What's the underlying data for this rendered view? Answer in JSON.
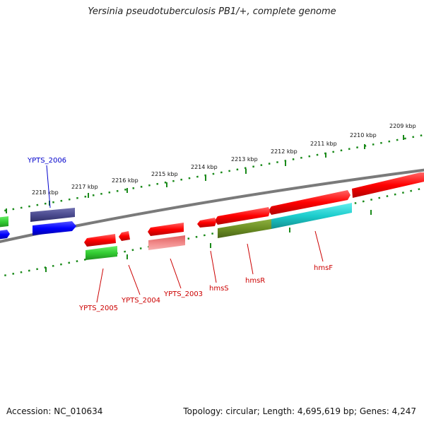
{
  "title": "Yersinia pseudotuberculosis PB1/+, complete genome",
  "footer": {
    "accession": "Accession: NC_010634",
    "summary": "Topology: circular; Length: 4,695,619 bp; Genes: 4,247"
  },
  "scale": {
    "ticks": [
      {
        "label": "2209 kbp"
      },
      {
        "label": "2210 kbp"
      },
      {
        "label": "2211 kbp"
      },
      {
        "label": "2212 kbp"
      },
      {
        "label": "2213 kbp"
      },
      {
        "label": "2214 kbp"
      },
      {
        "label": "2215 kbp"
      },
      {
        "label": "2216 kbp"
      },
      {
        "label": "2217 kbp"
      },
      {
        "label": "2218 kbp"
      }
    ]
  },
  "genes": [
    {
      "label": "YPTS_2006",
      "color": "#0000cc"
    },
    {
      "label": "YPTS_2005",
      "color": "#cc0000"
    },
    {
      "label": "YPTS_2004",
      "color": "#cc0000"
    },
    {
      "label": "YPTS_2003",
      "color": "#cc0000"
    },
    {
      "label": "hmsS",
      "color": "#cc0000"
    },
    {
      "label": "hmsR",
      "color": "#cc0000"
    },
    {
      "label": "hmsF",
      "color": "#cc0000"
    }
  ],
  "colors": {
    "cds": "#ff0000",
    "cds_light": "#f08080",
    "rna_blue": "#0000ff",
    "cog_navy": "#4b4b8f",
    "cog_green": "#33cc33",
    "cog_olive": "#6b8e23",
    "cog_cyan": "#1ccccc",
    "backbone": "#808080",
    "ticks": "#1a8a1a"
  }
}
